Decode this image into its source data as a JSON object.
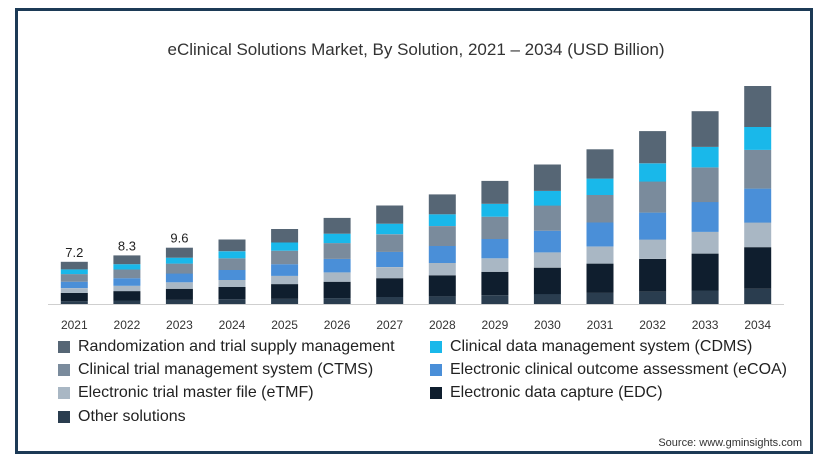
{
  "chart_data": {
    "type": "bar",
    "stacked": true,
    "title": "eClinical Solutions Market, By Solution, 2021 – 2034 (USD Billion)",
    "source": "Source: www.gminsights.com",
    "categories": [
      "2021",
      "2022",
      "2023",
      "2024",
      "2025",
      "2026",
      "2027",
      "2028",
      "2029",
      "2030",
      "2031",
      "2032",
      "2033",
      "2034"
    ],
    "totals": [
      7.2,
      8.3,
      9.6,
      11.0,
      12.8,
      14.7,
      16.8,
      18.7,
      21.0,
      23.8,
      26.4,
      29.5,
      32.9,
      37.2
    ],
    "total_labels": [
      "7.2",
      "8.3",
      "9.6",
      "",
      "",
      "",
      "",
      "",
      "",
      "",
      "",
      "",
      "",
      ""
    ],
    "series": [
      {
        "name": "Other solutions",
        "color": "#2a3d4f",
        "values": [
          0.5,
          0.6,
          0.7,
          0.8,
          0.9,
          1.0,
          1.2,
          1.3,
          1.5,
          1.7,
          1.9,
          2.1,
          2.3,
          2.6
        ]
      },
      {
        "name": "Electronic data capture (EDC)",
        "color": "#0f1e2e",
        "values": [
          1.4,
          1.6,
          1.9,
          2.1,
          2.5,
          2.8,
          3.2,
          3.6,
          4.0,
          4.5,
          5.0,
          5.6,
          6.3,
          7.1
        ]
      },
      {
        "name": "Electronic trial master file (eTMF)",
        "color": "#a9b7c4",
        "values": [
          0.8,
          0.9,
          1.1,
          1.2,
          1.4,
          1.6,
          1.9,
          2.1,
          2.3,
          2.6,
          2.9,
          3.3,
          3.7,
          4.2
        ]
      },
      {
        "name": "Electronic clinical outcome assessment (eCOA)",
        "color": "#4a8fd8",
        "values": [
          1.1,
          1.3,
          1.5,
          1.7,
          2.0,
          2.3,
          2.6,
          2.9,
          3.3,
          3.7,
          4.1,
          4.6,
          5.1,
          5.8
        ]
      },
      {
        "name": "Clinical trial management system (CTMS)",
        "color": "#7a8b9c",
        "values": [
          1.3,
          1.5,
          1.7,
          2.0,
          2.3,
          2.7,
          3.0,
          3.4,
          3.8,
          4.3,
          4.7,
          5.3,
          5.9,
          6.6
        ]
      },
      {
        "name": "Clinical data management system (CDMS)",
        "color": "#19b8ea",
        "values": [
          0.8,
          0.9,
          1.0,
          1.2,
          1.4,
          1.6,
          1.8,
          2.0,
          2.2,
          2.5,
          2.8,
          3.1,
          3.5,
          3.9
        ]
      },
      {
        "name": "Randomization and trial supply management",
        "color": "#566675",
        "values": [
          1.3,
          1.5,
          1.7,
          2.0,
          2.3,
          2.7,
          3.1,
          3.4,
          3.9,
          4.5,
          5.0,
          5.5,
          6.1,
          7.0
        ]
      }
    ],
    "legend_order": [
      "Randomization and trial supply management",
      "Clinical data management system (CDMS)",
      "Clinical trial management system (CTMS)",
      "Electronic clinical outcome assessment (eCOA)",
      "Electronic trial master file (eTMF)",
      "Electronic data capture (EDC)",
      "Other solutions"
    ],
    "ylim": [
      0,
      40
    ],
    "grid": false,
    "legend_position": "bottom"
  }
}
